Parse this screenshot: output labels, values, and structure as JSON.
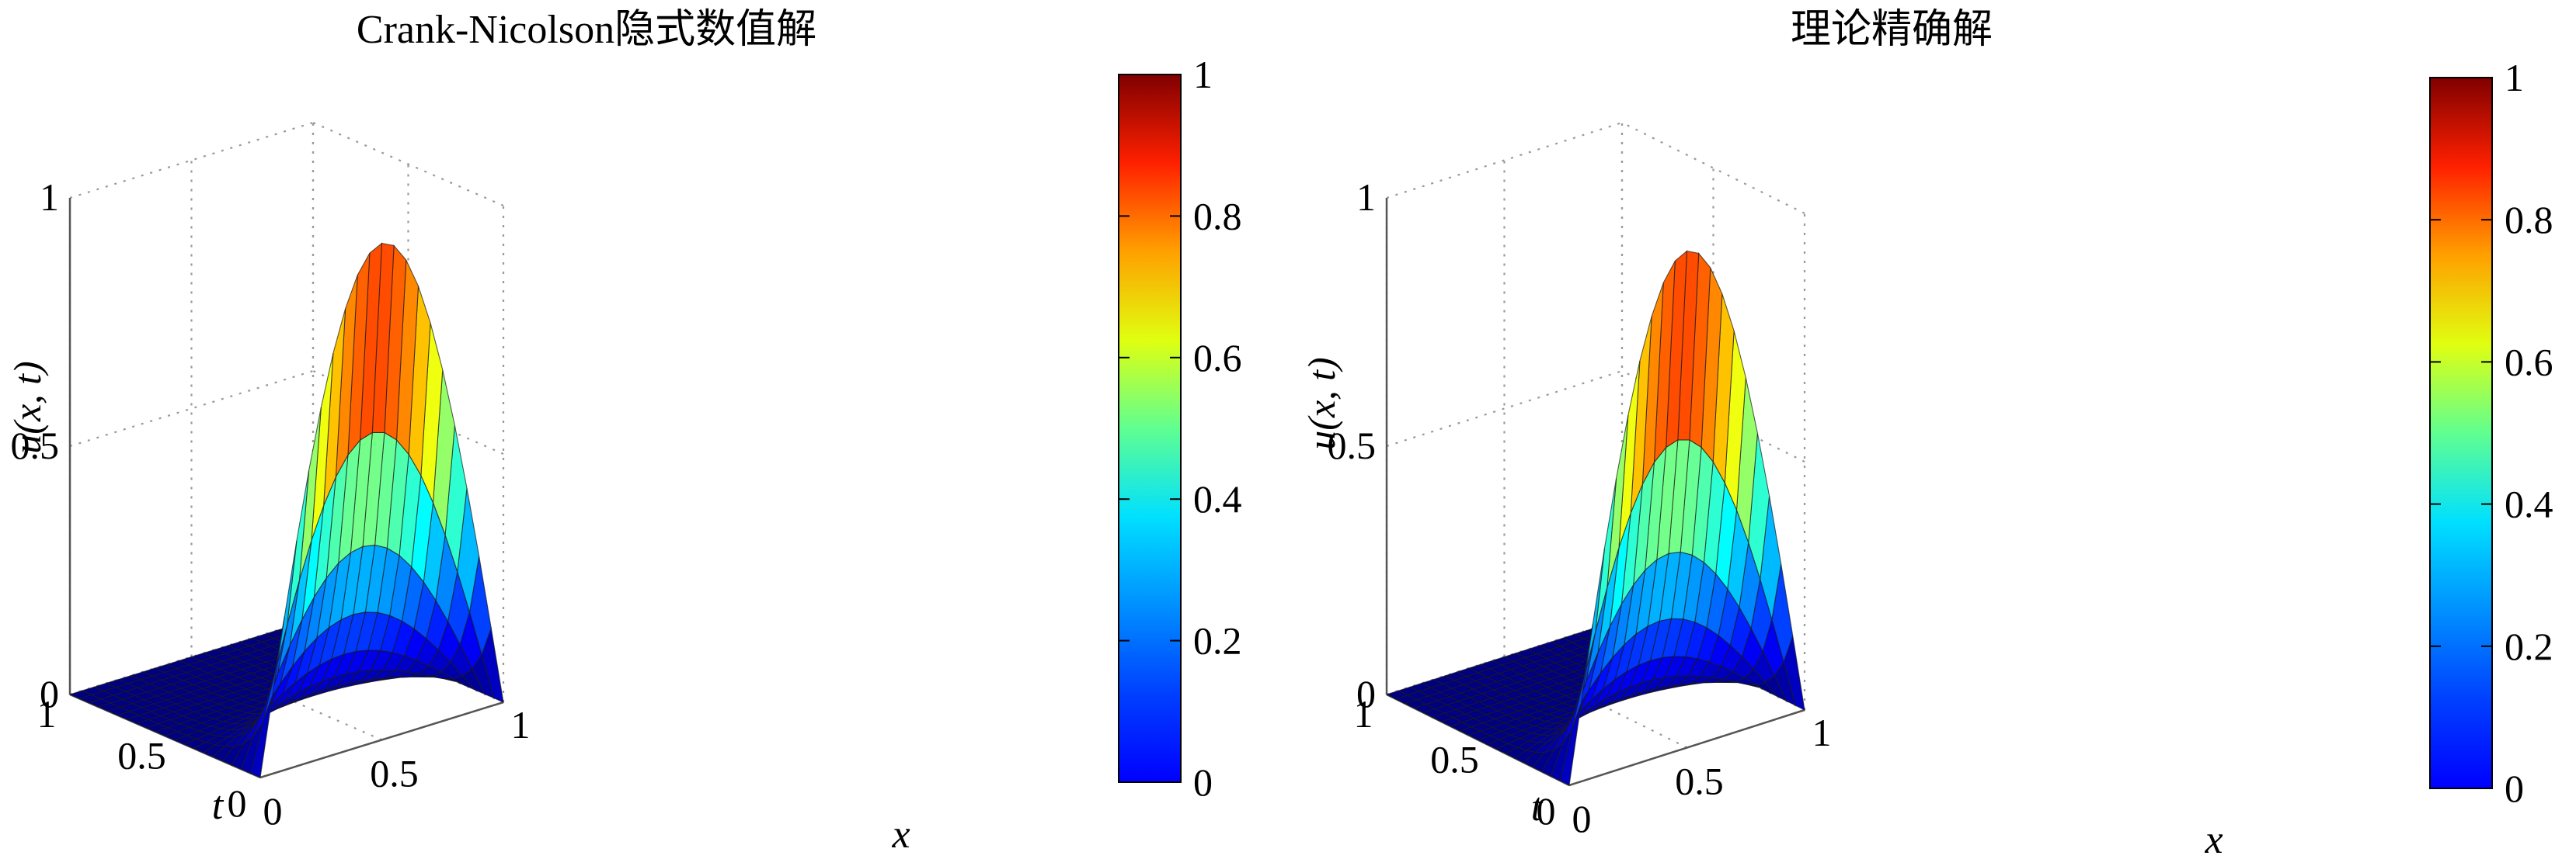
{
  "chart_data": [
    {
      "type": "surface",
      "title": "Crank-Nicolson隐式数值解",
      "xlabel": "x",
      "ylabel": "t",
      "zlabel": "u(x, t)",
      "xlim": [
        0,
        1
      ],
      "ylim": [
        0,
        1
      ],
      "zlim": [
        0,
        1
      ],
      "xticks": [
        "0",
        "0.5",
        "1"
      ],
      "yticks": [
        "0",
        "0.5",
        "1"
      ],
      "zticks": [
        "0",
        "0.5",
        "1"
      ],
      "grid": true,
      "colormap": "jet",
      "colorbar": {
        "ticks": [
          "0",
          "0.2",
          "0.4",
          "0.6",
          "0.8",
          "1"
        ],
        "range": [
          0,
          1
        ]
      },
      "surface": {
        "function": "u(x,t) = exp(-π² t) · sin(π x)",
        "grid_x": 21,
        "grid_t": 21,
        "peak_u": 1,
        "peak_at": {
          "x": 0.5,
          "t": 0
        }
      }
    },
    {
      "type": "surface",
      "title": "理论精确解",
      "xlabel": "x",
      "ylabel": "t",
      "zlabel": "u(x, t)",
      "xlim": [
        0,
        1
      ],
      "ylim": [
        0,
        1
      ],
      "zlim": [
        0,
        1
      ],
      "xticks": [
        "0",
        "0.5",
        "1"
      ],
      "yticks": [
        "0",
        "0.5",
        "1"
      ],
      "zticks": [
        "0",
        "0.5",
        "1"
      ],
      "grid": true,
      "colormap": "jet",
      "colorbar": {
        "ticks": [
          "0",
          "0.2",
          "0.4",
          "0.6",
          "0.8",
          "1"
        ],
        "range": [
          0,
          1
        ]
      },
      "surface": {
        "function": "u(x,t) = exp(-π² t) · sin(π x)",
        "grid_x": 21,
        "grid_t": 21,
        "peak_u": 1,
        "peak_at": {
          "x": 0.5,
          "t": 0
        }
      }
    }
  ]
}
